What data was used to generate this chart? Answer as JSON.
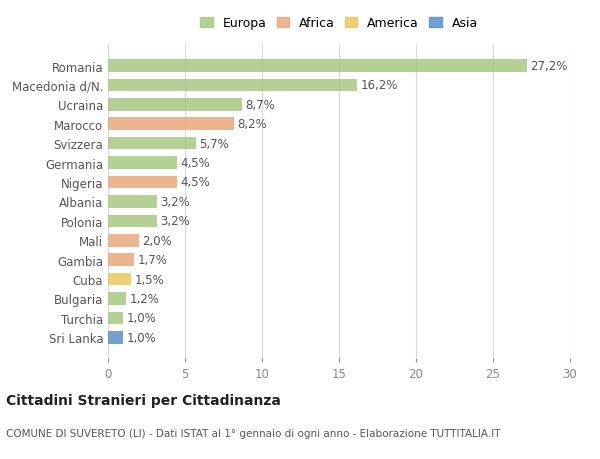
{
  "categories": [
    "Romania",
    "Macedonia d/N.",
    "Ucraina",
    "Marocco",
    "Svizzera",
    "Germania",
    "Nigeria",
    "Albania",
    "Polonia",
    "Mali",
    "Gambia",
    "Cuba",
    "Bulgaria",
    "Turchia",
    "Sri Lanka"
  ],
  "values": [
    27.2,
    16.2,
    8.7,
    8.2,
    5.7,
    4.5,
    4.5,
    3.2,
    3.2,
    2.0,
    1.7,
    1.5,
    1.2,
    1.0,
    1.0
  ],
  "labels": [
    "27,2%",
    "16,2%",
    "8,7%",
    "8,2%",
    "5,7%",
    "4,5%",
    "4,5%",
    "3,2%",
    "3,2%",
    "2,0%",
    "1,7%",
    "1,5%",
    "1,2%",
    "1,0%",
    "1,0%"
  ],
  "colors": [
    "#a8c882",
    "#a8c882",
    "#a8c882",
    "#e8a87c",
    "#a8c882",
    "#a8c882",
    "#e8a87c",
    "#a8c882",
    "#a8c882",
    "#e8a87c",
    "#e8a87c",
    "#e8c860",
    "#a8c882",
    "#a8c882",
    "#5b8fcc"
  ],
  "legend_labels": [
    "Europa",
    "Africa",
    "America",
    "Asia"
  ],
  "legend_colors": [
    "#a8c882",
    "#e8a87c",
    "#e8c860",
    "#5b8fcc"
  ],
  "xlim": [
    0,
    30
  ],
  "xticks": [
    0,
    5,
    10,
    15,
    20,
    25,
    30
  ],
  "title": "Cittadini Stranieri per Cittadinanza",
  "subtitle": "COMUNE DI SUVERETO (LI) - Dati ISTAT al 1° gennaio di ogni anno - Elaborazione TUTTITALIA.IT",
  "bg_color": "#ffffff",
  "grid_color": "#d8d8d8",
  "bar_height": 0.65,
  "label_fontsize": 8.5,
  "ytick_fontsize": 8.5,
  "xtick_fontsize": 8.5,
  "title_fontsize": 10,
  "subtitle_fontsize": 7.5
}
